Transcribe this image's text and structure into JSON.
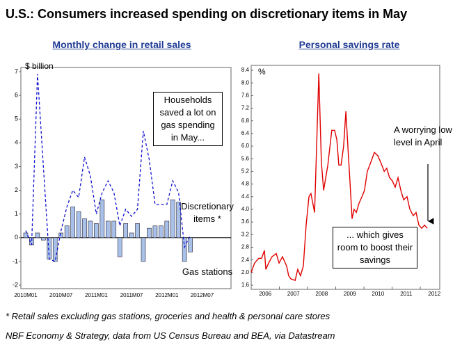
{
  "title": "U.S.: Consumers increased spending on discretionary items in May",
  "chart_data": [
    {
      "type": "bar",
      "title": "Monthly change in retail sales",
      "ylabel": "$ billion",
      "categories": [
        "2010M01",
        null,
        null,
        null,
        null,
        null,
        "2010M07",
        null,
        null,
        null,
        null,
        null,
        "2011M01",
        null,
        null,
        null,
        null,
        null,
        "2011M07",
        null,
        null,
        null,
        null,
        null,
        "2012M01",
        null,
        null,
        null,
        null,
        null,
        "2012M07"
      ],
      "series": [
        {
          "name": "Discretionary items *",
          "type": "line",
          "dashed": true,
          "color": "#1010d0",
          "values": [
            0.3,
            -0.3,
            6.9,
            3.0,
            -0.9,
            -1.0,
            0.3,
            1.3,
            2.0,
            1.7,
            3.4,
            2.6,
            1.0,
            1.9,
            2.4,
            1.9,
            0.5,
            1.2,
            0.9,
            1.2,
            4.5,
            3.3,
            1.4,
            1.4,
            1.4,
            2.4,
            1.9,
            -0.4,
            0.1,
            null,
            null
          ]
        },
        {
          "name": "Gas stations",
          "type": "bar",
          "color": "#a9c1e8",
          "values": [
            0.2,
            -0.3,
            0.2,
            -0.1,
            -0.9,
            -1.0,
            0.2,
            0.5,
            1.3,
            1.1,
            0.8,
            0.7,
            0.6,
            1.6,
            0.7,
            0.7,
            -0.8,
            0.6,
            0.2,
            0.6,
            -1.0,
            0.4,
            0.5,
            0.5,
            0.7,
            1.6,
            1.5,
            -1.0,
            -0.6,
            null,
            null
          ]
        }
      ],
      "ylim": [
        -2,
        7
      ],
      "yticks": [
        -2,
        -1,
        0,
        1,
        2,
        3,
        4,
        5,
        6,
        7
      ],
      "annotations": [
        "Households saved a lot on gas spending in May..."
      ]
    },
    {
      "type": "line",
      "title": "Personal savings rate",
      "ylabel": "%",
      "color": "#e00000",
      "x": [
        2006.0,
        2006.12,
        2006.27,
        2006.37,
        2006.47,
        2006.52,
        2006.62,
        2006.74,
        2006.89,
        2006.99,
        2007.11,
        2007.26,
        2007.33,
        2007.41,
        2007.56,
        2007.65,
        2007.75,
        2007.85,
        2007.95,
        2008.05,
        2008.12,
        2008.25,
        2008.4,
        2008.49,
        2008.57,
        2008.72,
        2008.86,
        2008.96,
        2009.04,
        2009.11,
        2009.19,
        2009.28,
        2009.36,
        2009.43,
        2009.51,
        2009.58,
        2009.65,
        2009.73,
        2009.83,
        2009.93,
        2010.02,
        2010.12,
        2010.25,
        2010.37,
        2010.49,
        2010.59,
        2010.72,
        2010.81,
        2010.91,
        2011.01,
        2011.11,
        2011.21,
        2011.31,
        2011.41,
        2011.53,
        2011.63,
        2011.75,
        2011.85,
        2011.95,
        2012.05,
        2012.15,
        2012.25
      ],
      "values": [
        2.0,
        2.3,
        2.45,
        2.45,
        2.7,
        2.1,
        2.3,
        2.5,
        2.6,
        2.3,
        2.5,
        2.2,
        1.9,
        1.8,
        1.75,
        2.1,
        1.9,
        2.2,
        3.5,
        4.4,
        4.5,
        3.9,
        8.3,
        5.5,
        4.6,
        5.4,
        6.5,
        6.5,
        6.2,
        5.4,
        5.4,
        6.0,
        7.1,
        6.0,
        4.8,
        3.7,
        4.0,
        3.9,
        4.2,
        4.4,
        4.6,
        5.2,
        5.5,
        5.8,
        5.7,
        5.5,
        5.2,
        5.3,
        5.0,
        4.9,
        4.7,
        5.0,
        4.6,
        4.3,
        4.4,
        4.0,
        3.8,
        3.9,
        3.5,
        3.4,
        3.5,
        3.4
      ],
      "xlim": [
        2006,
        2012.69
      ],
      "xticks": [
        2006,
        2007,
        2008,
        2009,
        2010,
        2011,
        2012
      ],
      "ylim": [
        1.6,
        8.4
      ],
      "yticks": [
        1.6,
        {
          "value": 2,
          "label": "2.0"
        },
        2.4,
        2.8,
        3.2,
        3.6,
        {
          "value": 4,
          "label": "4.0"
        },
        4.4,
        4.8,
        5.2,
        5.6,
        {
          "value": 6,
          "label": "6.0"
        },
        6.4,
        6.8,
        7.2,
        7.6,
        {
          "value": 8,
          "label": "8.0"
        },
        8.4
      ],
      "annotations": [
        "A worrying low level in April",
        "... which gives room to boost their savings"
      ]
    }
  ],
  "footnotes": [
    "* Retail sales excluding gas stations, groceries and health & personal care stores",
    "NBF Economy & Strategy, data from US Census Bureau and BEA, via Datastream"
  ]
}
